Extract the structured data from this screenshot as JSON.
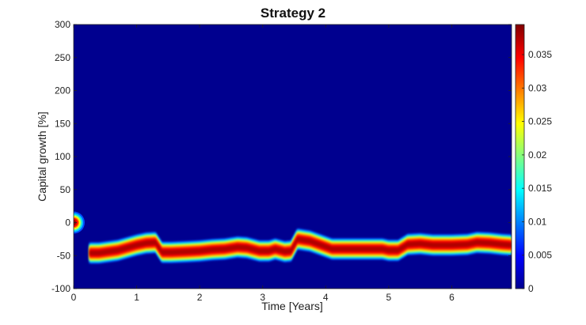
{
  "chart_data": {
    "type": "heatmap",
    "title": "Strategy 2",
    "xlabel": "Time [Years]",
    "ylabel": "Capital growth [%]",
    "xlim": [
      0,
      6.95
    ],
    "ylim": [
      -100,
      300
    ],
    "x_ticks": [
      0,
      1,
      2,
      3,
      4,
      5,
      6
    ],
    "x_tick_labels": [
      "0",
      "1",
      "2",
      "3",
      "4",
      "5",
      "6"
    ],
    "y_ticks": [
      -100,
      -50,
      0,
      50,
      100,
      150,
      200,
      250,
      300
    ],
    "y_tick_labels": [
      "-100",
      "-50",
      "0",
      "50",
      "100",
      "150",
      "200",
      "250",
      "300"
    ],
    "colorbar": {
      "colormap": "jet",
      "range": [
        0,
        0.0395
      ],
      "ticks": [
        0,
        0.005,
        0.01,
        0.015,
        0.02,
        0.025,
        0.03,
        0.035
      ],
      "tick_labels": [
        "0",
        "0.005",
        "0.01",
        "0.015",
        "0.02",
        "0.025",
        "0.03",
        "0.035"
      ]
    },
    "ridge": {
      "description_of_values": "centre of high-density band (capital growth %) over time (years)",
      "x": [
        0.0,
        0.15,
        0.25,
        0.4,
        0.55,
        0.7,
        0.85,
        1.0,
        1.15,
        1.3,
        1.4,
        1.55,
        1.8,
        2.0,
        2.2,
        2.4,
        2.6,
        2.75,
        2.95,
        3.1,
        3.2,
        3.35,
        3.45,
        3.55,
        3.75,
        3.9,
        4.1,
        4.4,
        4.7,
        4.9,
        5.0,
        5.15,
        5.3,
        5.5,
        5.7,
        6.0,
        6.25,
        6.4,
        6.6,
        6.8,
        6.95
      ],
      "y": [
        0,
        0,
        -46,
        -46,
        -44,
        -42,
        -38,
        -34,
        -31,
        -30,
        -45,
        -45,
        -44,
        -43,
        -41,
        -40,
        -37,
        -38,
        -43,
        -43,
        -40,
        -44,
        -43,
        -25,
        -28,
        -33,
        -40,
        -40,
        -40,
        -40,
        -42,
        -42,
        -33,
        -32,
        -34,
        -34,
        -33,
        -30,
        -31,
        -33,
        -34
      ]
    },
    "initial_spot": {
      "x": 0.0,
      "y": 0
    }
  }
}
